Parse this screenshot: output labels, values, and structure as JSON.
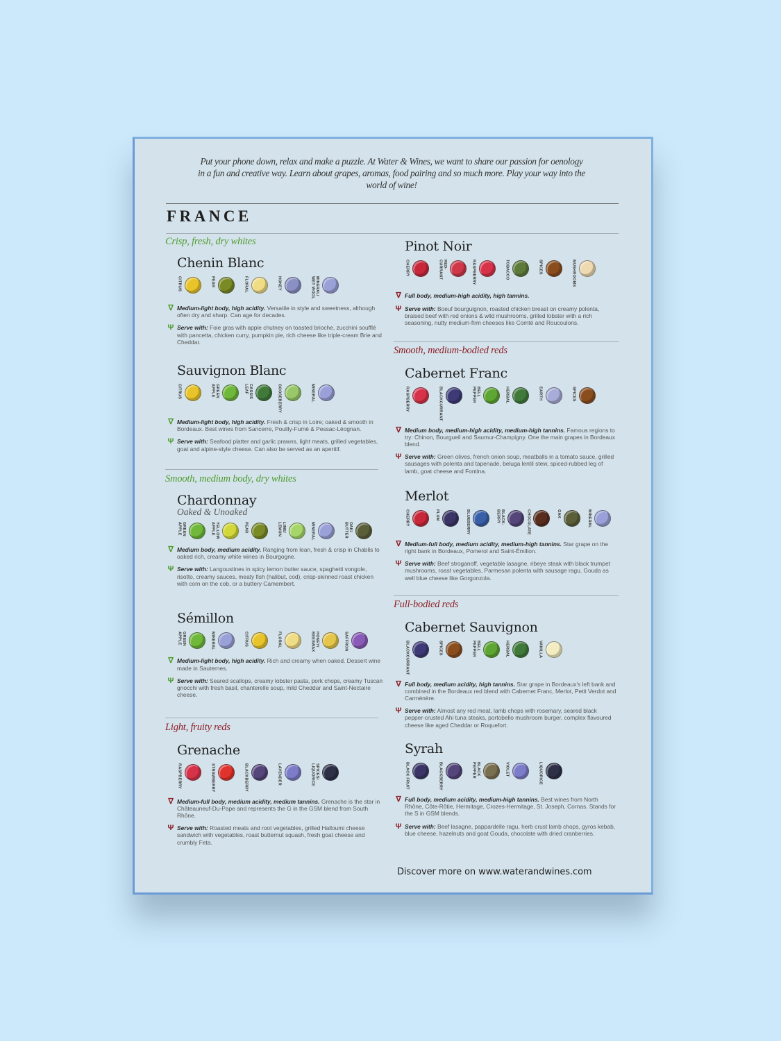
{
  "intro": "Put your phone down, relax and make a puzzle. At Water & Wines, we want to share our passion for oenology in a fun and creative way. Learn about grapes, aromas, food pairing and so much more. Play your way into the world of wine!",
  "country": "FRANCE",
  "colors": {
    "whites": "#4e9a2e",
    "reds": "#8e1d26",
    "board": "#d4e3eb",
    "background": "#cce8fb"
  },
  "note_icons": {
    "whites_body": "white-wine-glass-icon",
    "whites_serve": "fork-icon",
    "reds_body": "red-wine-glass-icon",
    "reds_serve": "fork-icon"
  },
  "columns": {
    "left": [
      {
        "heading": "Crisp, fresh, dry whites",
        "kind": "whites",
        "wines": [
          {
            "name": "Chenin Blanc",
            "aromas": [
              {
                "label": "CITRUS",
                "icon": "lemon-icon",
                "color": "#e8c42a"
              },
              {
                "label": "PEAR",
                "icon": "pear-icon",
                "color": "#7a8a25"
              },
              {
                "label": "FLORAL",
                "icon": "flower-icon",
                "color": "#f1dc86"
              },
              {
                "label": "HONEY",
                "icon": "bee-icon",
                "color": "#8a8fc4"
              },
              {
                "label": "MINERAL/\nWET WOOL",
                "icon": "diamond-icon",
                "color": "#9aa0d8"
              }
            ],
            "body_lead": "Medium-light body, high acidity.",
            "body_text": " Versatile in style and sweetness, although often dry and sharp. Can age for decades.",
            "serve_lead": "Serve with:",
            "serve_text": " Foie gras with apple chutney on toasted brioche, zucchini soufflé with pancetta, chicken curry, pumpkin pie, rich cheese like triple-cream Brie and Cheddar."
          },
          {
            "name": "Sauvignon Blanc",
            "aromas": [
              {
                "label": "CITRUS",
                "icon": "lemon-icon",
                "color": "#e8c42a"
              },
              {
                "label": "GREEN\nAPPLE",
                "icon": "green-apple-icon",
                "color": "#6fb83a"
              },
              {
                "label": "CASSIS\nLEAF",
                "icon": "leaf-icon",
                "color": "#3f7a3a"
              },
              {
                "label": "GOOSEBERRY",
                "icon": "gooseberry-icon",
                "color": "#98c86a"
              },
              {
                "label": "MINERAL",
                "icon": "diamond-icon",
                "color": "#9aa0d8"
              }
            ],
            "body_lead": "Medium-light body, high acidity.",
            "body_text": " Fresh & crisp in Loire; oaked & smooth in Bordeaux. Best wines from Sancerre, Pouilly-Fumé & Pessac-Léognan.",
            "serve_lead": "Serve with:",
            "serve_text": " Seafood platter and garlic prawns, light meats, grilled vegetables, goat and alpine-style cheese. Can also be served as an aperitif."
          }
        ]
      },
      {
        "heading": "Smooth, medium body, dry whites",
        "kind": "whites",
        "wines": [
          {
            "name": "Chardonnay",
            "subtitle": "Oaked & Unoaked",
            "aromas": [
              {
                "label": "GREEN\nAPPLE",
                "icon": "green-apple-icon",
                "color": "#6fb83a"
              },
              {
                "label": "YELLOW\nAPPLE",
                "icon": "yellow-apple-icon",
                "color": "#d2d83a"
              },
              {
                "label": "PEAR",
                "icon": "pear-icon",
                "color": "#7a8a25"
              },
              {
                "label": "LIME/\nLEMON",
                "icon": "lime-icon",
                "color": "#a6d66a"
              },
              {
                "label": "MINERAL",
                "icon": "diamond-icon",
                "color": "#9aa0d8"
              },
              {
                "label": "OAK/\nBUTTER",
                "icon": "barrel-icon",
                "color": "#5a5f3a"
              }
            ],
            "body_lead": "Medium body, medium acidity.",
            "body_text": " Ranging from lean, fresh & crisp in Chablis to oaked rich, creamy white wines in Bourgogne.",
            "serve_lead": "Serve with:",
            "serve_text": " Langoustines in spicy lemon butter sauce, spaghetti vongole, risotto, creamy sauces, meaty fish (halibut, cod), crisp-skinned roast chicken with corn on the cob, or a buttery Camembert."
          },
          {
            "name": "Sémillon",
            "aromas": [
              {
                "label": "GREEN\nAPPLE",
                "icon": "green-apple-icon",
                "color": "#6fb83a"
              },
              {
                "label": "MINERAL",
                "icon": "diamond-icon",
                "color": "#9aa0d8"
              },
              {
                "label": "CITRUS",
                "icon": "lemon-icon",
                "color": "#e8c42a"
              },
              {
                "label": "FLORAL",
                "icon": "flower-icon",
                "color": "#f1dc86"
              },
              {
                "label": "HONEY/\nBEESWAX",
                "icon": "honeycomb-icon",
                "color": "#e6c64a"
              },
              {
                "label": "SAFFRON",
                "icon": "saffron-icon",
                "color": "#8a5ab8"
              }
            ],
            "body_lead": "Medium-light body, high acidity.",
            "body_text": " Rich and creamy when oaked. Dessert wine made in Sauternes.",
            "serve_lead": "Serve with:",
            "serve_text": " Seared scallops, creamy lobster pasta, pork chops, creamy Tuscan gnocchi with fresh basil, chanterelle soup, mild Cheddar and Saint-Nectaire cheese."
          }
        ]
      },
      {
        "heading": "Light, fruity reds",
        "kind": "reds",
        "wines": [
          {
            "name": "Grenache",
            "aromas": [
              {
                "label": "RASPBERRY",
                "icon": "raspberry-icon",
                "color": "#d8324a"
              },
              {
                "label": "STRAWBERRY",
                "icon": "strawberry-icon",
                "color": "#e0332e"
              },
              {
                "label": "BLACKBERRY",
                "icon": "blackberry-icon",
                "color": "#54457a"
              },
              {
                "label": "LAVENDER",
                "icon": "lavender-icon",
                "color": "#7d7cc8"
              },
              {
                "label": "SPICES/\nLIQUORICE",
                "icon": "liquorice-icon",
                "color": "#2e3048"
              }
            ],
            "body_lead": "Medium-full body, medium acidity, medium tannins.",
            "body_text": " Grenache is the star in Châteauneuf-Du-Pape and represents the G in the GSM blend from South Rhône.",
            "serve_lead": "Serve with:",
            "serve_text": " Roasted meats and root vegetables, grilled Halloumi cheese sandwich with vegetables, roast butternut squash, fresh goat cheese and crumbly Feta."
          }
        ]
      }
    ],
    "right": [
      {
        "heading": "",
        "kind": "reds",
        "wines": [
          {
            "name": "Pinot Noir",
            "aromas": [
              {
                "label": "CHERRY",
                "icon": "cherry-icon",
                "color": "#c8283a"
              },
              {
                "label": "RED-\nCURRANT",
                "icon": "redcurrant-icon",
                "color": "#d0384a"
              },
              {
                "label": "RASPBERRY",
                "icon": "raspberry-icon",
                "color": "#d8324a"
              },
              {
                "label": "TOBACCO",
                "icon": "tobacco-leaf-icon",
                "color": "#5e7a3a"
              },
              {
                "label": "SPICES",
                "icon": "star-anise-icon",
                "color": "#8a4e1e"
              },
              {
                "label": "MUSHROOMS",
                "icon": "mushroom-icon",
                "color": "#efd9b0"
              }
            ],
            "body_lead": "Full body, medium-high acidity, high tannins.",
            "body_text": "",
            "serve_lead": "Serve with:",
            "serve_text": " Boeuf bourguignon, roasted chicken breast on creamy polenta, braised beef with red onions & wild mushrooms, grilled lobster with a rich seasoning, nutty medium-firm cheeses like Comté and Roucoulons."
          }
        ]
      },
      {
        "heading": "Smooth, medium-bodied reds",
        "kind": "reds",
        "wines": [
          {
            "name": "Cabernet Franc",
            "aromas": [
              {
                "label": "RASPBERRY",
                "icon": "raspberry-icon",
                "color": "#d8324a"
              },
              {
                "label": "BLACKCURRANT",
                "icon": "blackcurrant-icon",
                "color": "#3e3a78"
              },
              {
                "label": "BELL\nPEPPER",
                "icon": "bell-pepper-icon",
                "color": "#5ea632"
              },
              {
                "label": "HERBAL",
                "icon": "herb-icon",
                "color": "#3f7a3a"
              },
              {
                "label": "EARTH",
                "icon": "diamond-icon",
                "color": "#a8acd8"
              },
              {
                "label": "SPICES",
                "icon": "star-anise-icon",
                "color": "#8a4e1e"
              }
            ],
            "body_lead": "Medium body, medium-high acidity, medium-high tannins.",
            "body_text": " Famous regions to try: Chinon, Bourgueil and Saumur-Champigny. One the main grapes in Bordeaux blend.",
            "serve_lead": "Serve with:",
            "serve_text": " Green olives, french onion soup, meatballs in a tomato sauce, grilled sausages with polenta and tapenade, beluga lentil stew, spiced-rubbed leg of lamb, goat cheese and Fontina."
          },
          {
            "name": "Merlot",
            "aromas": [
              {
                "label": "CHERRY",
                "icon": "cherry-icon",
                "color": "#c8283a"
              },
              {
                "label": "PLUM",
                "icon": "plum-icon",
                "color": "#3a3566"
              },
              {
                "label": "BLUEBERRY",
                "icon": "blueberry-icon",
                "color": "#3860a8"
              },
              {
                "label": "BLACK-\nBERRY",
                "icon": "blackberry-icon",
                "color": "#54457a"
              },
              {
                "label": "CHOCOLATE",
                "icon": "chocolate-icon",
                "color": "#5a2e1e"
              },
              {
                "label": "OAK",
                "icon": "barrel-icon",
                "color": "#5a5f3a"
              },
              {
                "label": "MINERAL",
                "icon": "diamond-icon",
                "color": "#9aa0d8"
              }
            ],
            "body_lead": "Medium-full body, medium acidity, medium-high tannins.",
            "body_text": " Star grape on the right bank in Bordeaux, Pomerol and Saint-Émilion.",
            "serve_lead": "Serve with:",
            "serve_text": " Beef stroganoff, vegetable lasagne, ribeye steak with black trumpet mushrooms, roast vegetables, Parmesan polenta with sausage ragu, Gouda as well blue cheese like Gorgonzola."
          }
        ]
      },
      {
        "heading": "Full-bodied reds",
        "kind": "reds",
        "wines": [
          {
            "name": "Cabernet Sauvignon",
            "aromas": [
              {
                "label": "BLACKCURRANT",
                "icon": "blackcurrant-icon",
                "color": "#3e3a78"
              },
              {
                "label": "SPICES",
                "icon": "star-anise-icon",
                "color": "#8a4e1e"
              },
              {
                "label": "BELL\nPEPPER",
                "icon": "bell-pepper-icon",
                "color": "#5ea632"
              },
              {
                "label": "HERBAL",
                "icon": "herb-icon",
                "color": "#3f7a3a"
              },
              {
                "label": "VANILLA",
                "icon": "vanilla-flower-icon",
                "color": "#f3ecc0"
              }
            ],
            "body_lead": "Full body, medium acidity, high tannins.",
            "body_text": " Star grape in Bordeaux's left bank and combined in the Bordeaux red blend with Cabernet Franc, Merlot, Petit Verdot and Carménère.",
            "serve_lead": "Serve with:",
            "serve_text": " Almost any red meat, lamb chops with rosemary, seared black pepper-crusted Ahi tuna steaks, portobello mushroom burger, complex flavoured cheese like aged Cheddar or Roquefort."
          },
          {
            "name": "Syrah",
            "aromas": [
              {
                "label": "BLACK FRUIT",
                "icon": "black-plum-icon",
                "color": "#3a3566"
              },
              {
                "label": "BLACKBERRY",
                "icon": "blackberry-icon",
                "color": "#54457a"
              },
              {
                "label": "BLACK\nPEPPER",
                "icon": "pepper-grinder-icon",
                "color": "#7a7050"
              },
              {
                "label": "VIOLET",
                "icon": "violet-flower-icon",
                "color": "#7d7cc8"
              },
              {
                "label": "LIQUORICE",
                "icon": "liquorice-icon",
                "color": "#2e3048"
              }
            ],
            "body_lead": "Full body, medium acidity, medium-high tannins.",
            "body_text": " Best wines from North Rhône, Côte-Rôtie, Hermitage, Crozes-Hermitage, St. Joseph, Cornas. Stands for the S in GSM blends.",
            "serve_lead": "Serve with:",
            "serve_text": " Beef lasagne, pappardelle ragu, herb crust lamb chops, gyros kebab, blue cheese, hazelnuts and goat Gouda, chocolate with dried cranberries."
          }
        ]
      }
    ]
  },
  "footer": "Discover more on www.waterandwines.com"
}
